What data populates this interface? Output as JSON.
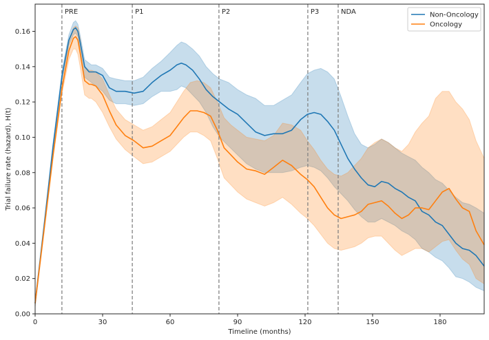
{
  "chart_data": {
    "type": "line",
    "title": "",
    "xlabel": "Timeline (months)",
    "ylabel": "Trial failure rate (hazard), H(t)",
    "xlim": [
      0,
      199.6
    ],
    "ylim": [
      0,
      0.1754
    ],
    "xticks": [
      0,
      30,
      60,
      90,
      120,
      150,
      180
    ],
    "xtick_labels": [
      "0",
      "30",
      "60",
      "90",
      "120",
      "150",
      "180"
    ],
    "yticks": [
      0.0,
      0.02,
      0.04,
      0.06,
      0.08,
      0.1,
      0.12,
      0.14,
      0.16
    ],
    "ytick_labels": [
      "0.00",
      "0.02",
      "0.04",
      "0.06",
      "0.08",
      "0.10",
      "0.12",
      "0.14",
      "0.16"
    ],
    "grid": false,
    "legend_position": "top-right",
    "phase_lines": [
      {
        "label": "PRE",
        "x": 11.9
      },
      {
        "label": "P1",
        "x": 43.2
      },
      {
        "label": "P2",
        "x": 81.7
      },
      {
        "label": "P3",
        "x": 121.2
      },
      {
        "label": "NDA",
        "x": 134.7
      }
    ],
    "series": [
      {
        "name": "Non-Oncology",
        "color": "#1f77b4",
        "x": [
          0,
          4,
          8,
          12,
          15,
          17,
          18,
          19,
          20,
          22,
          24,
          25,
          27,
          30,
          33,
          36,
          40,
          44,
          48,
          52,
          56,
          60,
          63,
          65,
          67,
          70,
          73,
          76,
          79,
          82,
          86,
          90,
          94,
          98,
          102,
          106,
          110,
          114,
          118,
          121,
          124,
          127,
          130,
          133,
          136,
          139,
          142,
          145,
          148,
          151,
          154,
          157,
          160,
          163,
          166,
          169,
          172,
          175,
          178,
          181,
          184,
          187,
          190,
          193,
          196,
          199.6
        ],
        "values": [
          0.006,
          0.05,
          0.095,
          0.135,
          0.155,
          0.161,
          0.162,
          0.16,
          0.154,
          0.14,
          0.137,
          0.137,
          0.137,
          0.135,
          0.128,
          0.126,
          0.126,
          0.125,
          0.126,
          0.131,
          0.135,
          0.138,
          0.141,
          0.142,
          0.141,
          0.138,
          0.133,
          0.127,
          0.123,
          0.12,
          0.116,
          0.113,
          0.108,
          0.103,
          0.101,
          0.102,
          0.102,
          0.104,
          0.11,
          0.113,
          0.114,
          0.113,
          0.109,
          0.104,
          0.096,
          0.088,
          0.082,
          0.077,
          0.073,
          0.072,
          0.075,
          0.074,
          0.071,
          0.069,
          0.066,
          0.064,
          0.058,
          0.056,
          0.052,
          0.05,
          0.045,
          0.04,
          0.037,
          0.036,
          0.033,
          0.027
        ],
        "ci_lower": [
          0.004,
          0.048,
          0.093,
          0.132,
          0.152,
          0.158,
          0.159,
          0.157,
          0.15,
          0.134,
          0.132,
          0.131,
          0.129,
          0.126,
          0.121,
          0.119,
          0.119,
          0.118,
          0.119,
          0.123,
          0.126,
          0.126,
          0.127,
          0.129,
          0.128,
          0.124,
          0.12,
          0.114,
          0.106,
          0.1,
          0.095,
          0.09,
          0.085,
          0.082,
          0.08,
          0.08,
          0.08,
          0.081,
          0.083,
          0.084,
          0.083,
          0.081,
          0.077,
          0.072,
          0.068,
          0.064,
          0.059,
          0.055,
          0.052,
          0.052,
          0.054,
          0.052,
          0.05,
          0.047,
          0.045,
          0.042,
          0.037,
          0.035,
          0.032,
          0.03,
          0.026,
          0.021,
          0.02,
          0.018,
          0.015,
          0.013
        ],
        "ci_upper": [
          0.008,
          0.052,
          0.097,
          0.138,
          0.158,
          0.165,
          0.166,
          0.164,
          0.158,
          0.144,
          0.142,
          0.141,
          0.141,
          0.139,
          0.134,
          0.133,
          0.132,
          0.132,
          0.134,
          0.139,
          0.143,
          0.148,
          0.152,
          0.154,
          0.153,
          0.15,
          0.146,
          0.14,
          0.136,
          0.133,
          0.131,
          0.127,
          0.124,
          0.122,
          0.118,
          0.118,
          0.121,
          0.124,
          0.131,
          0.136,
          0.138,
          0.139,
          0.137,
          0.133,
          0.123,
          0.112,
          0.102,
          0.096,
          0.094,
          0.096,
          0.099,
          0.097,
          0.094,
          0.091,
          0.089,
          0.087,
          0.083,
          0.08,
          0.076,
          0.074,
          0.07,
          0.066,
          0.063,
          0.062,
          0.06,
          0.057
        ]
      },
      {
        "name": "Oncology",
        "color": "#ff7f0e",
        "x": [
          0,
          4,
          8,
          12,
          15,
          17,
          18,
          19,
          20,
          22,
          24,
          25,
          27,
          30,
          33,
          36,
          40,
          44,
          48,
          52,
          56,
          60,
          63,
          66,
          69,
          72,
          75,
          78,
          81,
          84,
          87,
          90,
          94,
          98,
          102,
          106,
          110,
          114,
          118,
          121,
          124,
          127,
          130,
          133,
          136,
          139,
          142,
          145,
          148,
          151,
          154,
          157,
          160,
          163,
          166,
          169,
          172,
          175,
          178,
          181,
          184,
          187,
          190,
          193,
          196,
          199.6
        ],
        "values": [
          0.006,
          0.048,
          0.09,
          0.128,
          0.149,
          0.156,
          0.157,
          0.155,
          0.148,
          0.132,
          0.13,
          0.13,
          0.129,
          0.124,
          0.115,
          0.107,
          0.101,
          0.098,
          0.094,
          0.095,
          0.098,
          0.101,
          0.106,
          0.111,
          0.115,
          0.115,
          0.114,
          0.112,
          0.104,
          0.094,
          0.09,
          0.086,
          0.082,
          0.081,
          0.079,
          0.083,
          0.087,
          0.084,
          0.079,
          0.076,
          0.072,
          0.066,
          0.06,
          0.056,
          0.054,
          0.055,
          0.056,
          0.058,
          0.062,
          0.063,
          0.064,
          0.061,
          0.057,
          0.054,
          0.056,
          0.06,
          0.06,
          0.059,
          0.064,
          0.069,
          0.071,
          0.065,
          0.06,
          0.058,
          0.047,
          0.039
        ],
        "ci_lower": [
          0.004,
          0.046,
          0.088,
          0.125,
          0.144,
          0.15,
          0.15,
          0.147,
          0.14,
          0.124,
          0.122,
          0.122,
          0.12,
          0.114,
          0.106,
          0.099,
          0.093,
          0.089,
          0.085,
          0.086,
          0.089,
          0.092,
          0.096,
          0.1,
          0.103,
          0.103,
          0.101,
          0.098,
          0.088,
          0.077,
          0.073,
          0.069,
          0.065,
          0.063,
          0.061,
          0.063,
          0.066,
          0.062,
          0.057,
          0.054,
          0.05,
          0.045,
          0.04,
          0.037,
          0.036,
          0.037,
          0.038,
          0.04,
          0.043,
          0.044,
          0.044,
          0.04,
          0.036,
          0.033,
          0.035,
          0.037,
          0.037,
          0.035,
          0.038,
          0.041,
          0.042,
          0.036,
          0.031,
          0.028,
          0.02,
          0.017
        ],
        "ci_upper": [
          0.008,
          0.05,
          0.092,
          0.131,
          0.154,
          0.162,
          0.163,
          0.162,
          0.156,
          0.14,
          0.138,
          0.138,
          0.137,
          0.133,
          0.124,
          0.116,
          0.11,
          0.107,
          0.104,
          0.106,
          0.11,
          0.114,
          0.12,
          0.126,
          0.131,
          0.132,
          0.131,
          0.128,
          0.12,
          0.111,
          0.107,
          0.104,
          0.1,
          0.099,
          0.098,
          0.101,
          0.108,
          0.107,
          0.104,
          0.098,
          0.093,
          0.087,
          0.082,
          0.079,
          0.078,
          0.08,
          0.084,
          0.088,
          0.094,
          0.097,
          0.099,
          0.097,
          0.094,
          0.092,
          0.096,
          0.103,
          0.108,
          0.112,
          0.122,
          0.126,
          0.126,
          0.12,
          0.116,
          0.11,
          0.098,
          0.088
        ]
      }
    ]
  }
}
